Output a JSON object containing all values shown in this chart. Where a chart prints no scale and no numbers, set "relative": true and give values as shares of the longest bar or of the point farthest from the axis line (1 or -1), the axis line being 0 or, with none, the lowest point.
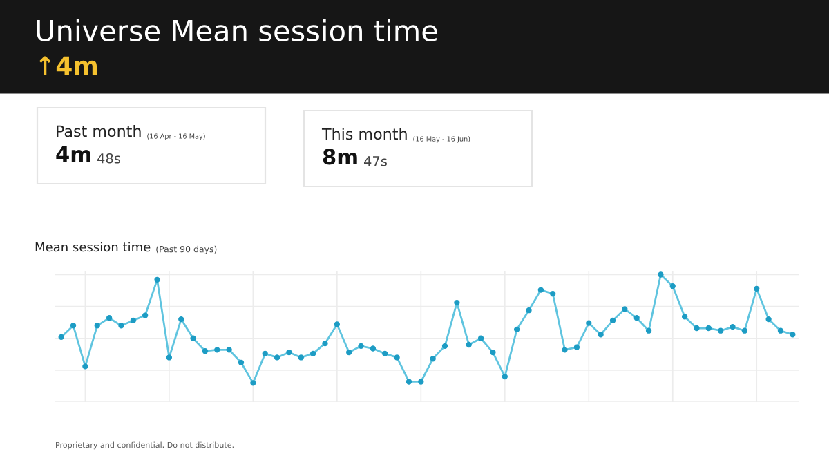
{
  "chart_data": {
    "type": "line",
    "title": "Universe Mean session time",
    "subtitle": "↑4m",
    "annotations": [
      "Past month",
      "(16 Apr - 16 May)",
      "4m",
      "48s",
      "This month",
      "(16 May - 16 Jun)",
      "8m",
      "47s",
      "Mean session time",
      "(Past 90 days)",
      "Proprietary and confidential. Do not distribute."
    ],
    "relative": true,
    "categories": [
      null,
      null,
      null,
      null,
      null,
      null,
      null,
      null,
      null,
      null,
      null,
      null,
      null,
      null,
      null,
      null,
      null,
      null,
      null,
      null,
      null,
      null,
      null,
      null,
      null,
      null,
      null,
      null,
      null,
      null,
      null,
      null,
      null,
      null,
      null,
      null,
      null,
      null,
      null,
      null,
      null,
      null,
      null,
      null,
      null,
      null,
      null,
      null,
      null,
      null,
      null,
      null,
      null,
      null,
      null,
      null,
      null,
      null,
      null,
      null,
      null,
      null
    ],
    "series": [
      {
        "color": "#5fc4df",
        "values": [
          0.51,
          0.6,
          0.28,
          0.6,
          0.66,
          0.6,
          0.64,
          0.68,
          0.96,
          0.35,
          0.65,
          0.5,
          0.4,
          0.41,
          0.41,
          0.31,
          0.15,
          0.38,
          0.35,
          0.39,
          0.35,
          0.38,
          0.46,
          0.61,
          0.39,
          0.44,
          0.42,
          0.38,
          0.35,
          0.16,
          0.16,
          0.34,
          0.44,
          0.78,
          0.45,
          0.5,
          0.39,
          0.2,
          0.57,
          0.72,
          0.88,
          0.85,
          0.41,
          0.43,
          0.62,
          0.53,
          0.64,
          0.73,
          0.66,
          0.56,
          1.0,
          0.91,
          0.67,
          0.58,
          0.58,
          0.56,
          0.59,
          0.56,
          0.89,
          0.65,
          0.56,
          0.53
        ]
      }
    ],
    "marker": "circle",
    "line_style": "solid",
    "grid": true
  }
}
